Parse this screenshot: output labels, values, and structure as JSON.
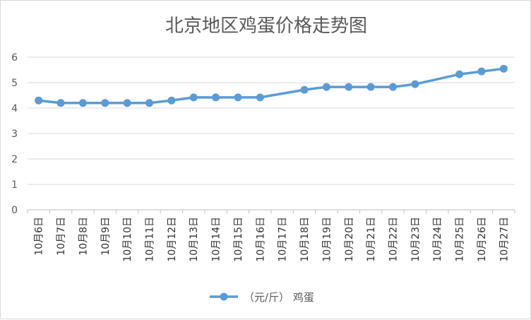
{
  "chart_data": {
    "type": "line",
    "title": "北京地区鸡蛋价格走势图",
    "categories": [
      "10月6日",
      "10月7日",
      "10月8日",
      "10月9日",
      "10月10日",
      "10月11日",
      "10月12日",
      "10月13日",
      "10月14日",
      "10月15日",
      "10月16日",
      "10月17日",
      "10月18日",
      "10月19日",
      "10月20日",
      "10月21日",
      "10月22日",
      "10月23日",
      "10月24日",
      "10月25日",
      "10月26日",
      "10月27日"
    ],
    "series": [
      {
        "name": "（元/斤） 鸡蛋",
        "values": [
          4.3,
          4.2,
          4.2,
          4.2,
          4.2,
          4.2,
          4.3,
          4.42,
          4.42,
          4.42,
          4.42,
          null,
          4.72,
          4.83,
          4.83,
          4.83,
          4.83,
          4.94,
          null,
          5.33,
          5.44,
          5.55
        ],
        "color": "#5b9bd5"
      }
    ],
    "ylim": [
      0,
      6
    ],
    "yticks": [
      0,
      1,
      2,
      3,
      4,
      5,
      6
    ],
    "grid": true,
    "legend": "bottom"
  }
}
